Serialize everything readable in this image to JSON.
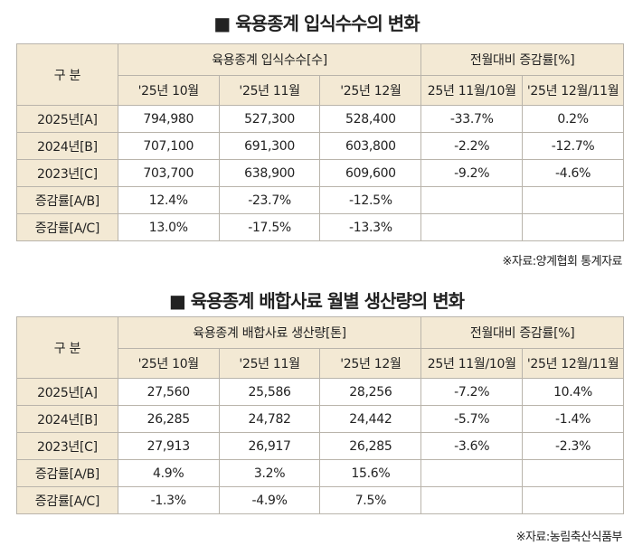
{
  "tables": [
    {
      "title": "■ 육용종계 입식수수의 변화",
      "header": {
        "group_label": "구 분",
        "group1": "육용종계 입식수수[수]",
        "group2": "전월대비 증감률[%]",
        "months": [
          "'25년 10월",
          "'25년 11월",
          "'25년 12월"
        ],
        "changes": [
          "25년 11월/10월",
          "'25년 12월/11월"
        ]
      },
      "rows": [
        [
          "2025년[A]",
          "794,980",
          "527,300",
          "528,400",
          "-33.7%",
          "0.2%"
        ],
        [
          "2024년[B]",
          "707,100",
          "691,300",
          "603,800",
          "-2.2%",
          "-12.7%"
        ],
        [
          "2023년[C]",
          "703,700",
          "638,900",
          "609,600",
          "-9.2%",
          "-4.6%"
        ],
        [
          "증감률[A/B]",
          "12.4%",
          "-23.7%",
          "-12.5%"
        ],
        [
          "증감률[A/C]",
          "13.0%",
          "-17.5%",
          "-13.3%"
        ]
      ],
      "source": "※자료:양계협회 통계자료"
    },
    {
      "title": "■ 육용종계 배합사료 월별 생산량의 변화",
      "header": {
        "group_label": "구 분",
        "group1": "육용종계 배합사료 생산량[톤]",
        "group2": "전월대비 증감률[%]",
        "months": [
          "'25년 10월",
          "'25년 11월",
          "'25년 12월"
        ],
        "changes": [
          "25년 11월/10월",
          "'25년 12월/11월"
        ]
      },
      "rows": [
        [
          "2025년[A]",
          "27,560",
          "25,586",
          "28,256",
          "-7.2%",
          "10.4%"
        ],
        [
          "2024년[B]",
          "26,285",
          "24,782",
          "24,442",
          "-5.7%",
          "-1.4%"
        ],
        [
          "2023년[C]",
          "27,913",
          "26,917",
          "26,285",
          "-3.6%",
          "-2.3%"
        ],
        [
          "증감률[A/B]",
          "4.9%",
          "3.2%",
          "15.6%"
        ],
        [
          "증감률[A/C]",
          "-1.3%",
          "-4.9%",
          "7.5%"
        ]
      ],
      "source": "※자료:농림축산식품부"
    }
  ]
}
